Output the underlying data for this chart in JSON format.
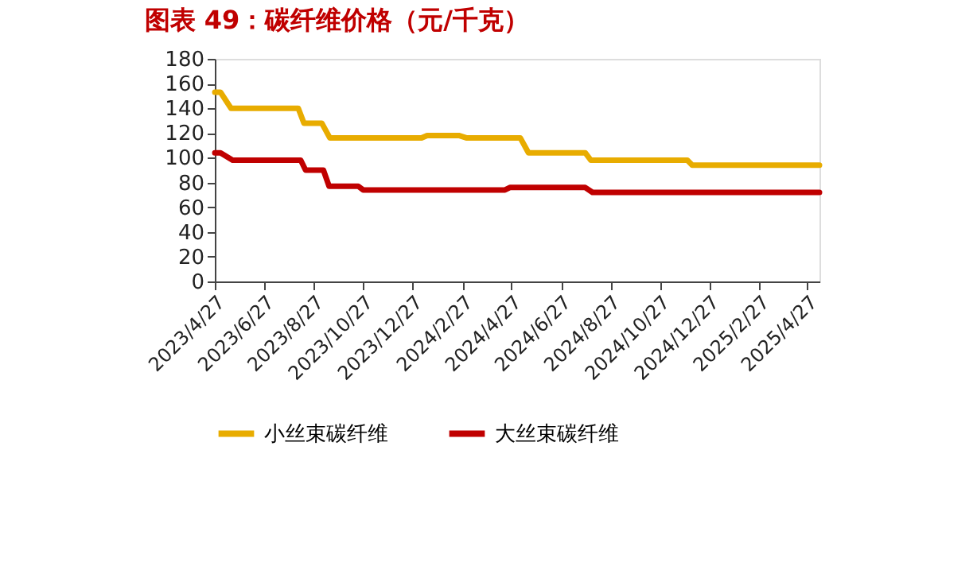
{
  "chart_data": {
    "type": "line",
    "title": "图表 49：碳纤维价格（元/千克）",
    "series": [
      {
        "name": "小丝束碳纤维",
        "color": "#e8ac00",
        "x": [
          "2023-04-27",
          "2023-05-04",
          "2023-05-17",
          "2023-08-08",
          "2023-08-15",
          "2023-09-06",
          "2023-09-16",
          "2024-01-07",
          "2024-01-14",
          "2024-02-22",
          "2024-03-03",
          "2024-05-08",
          "2024-05-18",
          "2024-07-27",
          "2024-08-03",
          "2024-11-30",
          "2024-12-06",
          "2025-05-12"
        ],
        "values": [
          153,
          153,
          140,
          140,
          128,
          128,
          116,
          116,
          118,
          118,
          116,
          116,
          104,
          104,
          98,
          98,
          94,
          94
        ]
      },
      {
        "name": "大丝束碳纤维",
        "color": "#c00000",
        "x": [
          "2023-04-27",
          "2023-05-04",
          "2023-05-19",
          "2023-08-11",
          "2023-08-17",
          "2023-09-08",
          "2023-09-15",
          "2023-10-21",
          "2023-10-27",
          "2024-04-19",
          "2024-04-25",
          "2024-07-27",
          "2024-08-05",
          "2025-05-12"
        ],
        "values": [
          104,
          104,
          98,
          98,
          90,
          90,
          77,
          77,
          74,
          74,
          76,
          76,
          72,
          72
        ]
      }
    ],
    "xlim": [
      "2023-04-27",
      "2025-05-12"
    ],
    "xticks": [
      {
        "value": "2023-04-27",
        "label": "2023/4/27"
      },
      {
        "value": "2023-06-27",
        "label": "2023/6/27"
      },
      {
        "value": "2023-08-27",
        "label": "2023/8/27"
      },
      {
        "value": "2023-10-27",
        "label": "2023/10/27"
      },
      {
        "value": "2023-12-27",
        "label": "2023/12/27"
      },
      {
        "value": "2024-02-27",
        "label": "2024/2/27"
      },
      {
        "value": "2024-04-27",
        "label": "2024/4/27"
      },
      {
        "value": "2024-06-27",
        "label": "2024/6/27"
      },
      {
        "value": "2024-08-27",
        "label": "2024/8/27"
      },
      {
        "value": "2024-10-27",
        "label": "2024/10/27"
      },
      {
        "value": "2024-12-27",
        "label": "2024/12/27"
      },
      {
        "value": "2025-02-27",
        "label": "2025/2/27"
      },
      {
        "value": "2025-04-27",
        "label": "2025/4/27"
      }
    ],
    "ylim": [
      0,
      180
    ],
    "yticks": [
      0,
      20,
      40,
      60,
      80,
      100,
      120,
      140,
      160,
      180
    ],
    "grid": false,
    "legend": "bottom",
    "marker": "none",
    "line_style": "solid"
  }
}
